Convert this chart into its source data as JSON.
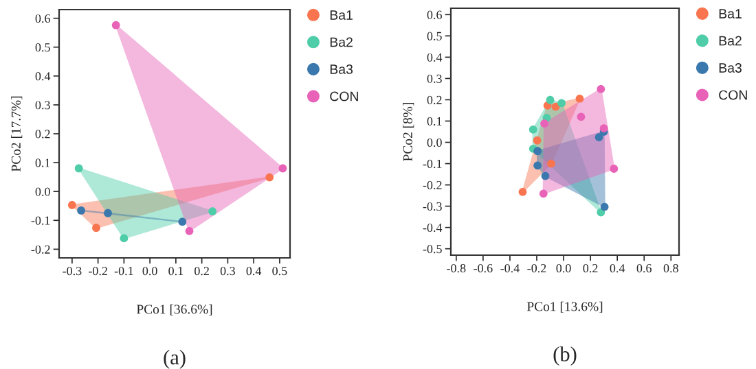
{
  "chart_data": [
    {
      "type": "scatter",
      "xlabel": "PCo1 [36.6%]",
      "ylabel": "PCo2 [17.7%]",
      "annotations": [
        "(a)"
      ],
      "xlim": [
        -0.35,
        0.54
      ],
      "ylim": [
        -0.23,
        0.63
      ],
      "xticks": [
        -0.3,
        -0.2,
        -0.1,
        {
          "value": 0,
          "label": "0.0"
        },
        0.1,
        0.2,
        0.3,
        0.4,
        0.5
      ],
      "yticks": [
        -0.2,
        -0.1,
        {
          "value": 0,
          "label": "0.0"
        },
        0.1,
        0.2,
        0.3,
        0.4,
        0.5,
        0.6
      ],
      "grid": false,
      "legend": "right",
      "marker": "circle",
      "series": [
        {
          "name": "Ba1",
          "color": "#f8754f",
          "x": [
            -0.3,
            -0.207,
            0.461
          ],
          "values": [
            -0.047,
            -0.126,
            0.049
          ]
        },
        {
          "name": "Ba2",
          "color": "#4ecda8",
          "x": [
            -0.274,
            -0.1,
            0.241
          ],
          "values": [
            0.08,
            -0.162,
            -0.069
          ]
        },
        {
          "name": "Ba3",
          "color": "#3a78ad",
          "x": [
            -0.265,
            -0.162,
            0.125
          ],
          "values": [
            -0.066,
            -0.075,
            -0.105
          ]
        },
        {
          "name": "CON",
          "color": "#e863b8",
          "x": [
            -0.131,
            0.512,
            0.152
          ],
          "values": [
            0.576,
            0.08,
            -0.137
          ]
        }
      ]
    },
    {
      "type": "scatter",
      "xlabel": "PCo1 [13.6%]",
      "ylabel": "PCo2 [8%]",
      "annotations": [
        "(b)"
      ],
      "xlim": [
        -0.84,
        0.86
      ],
      "ylim": [
        -0.53,
        0.63
      ],
      "xticks": [
        -0.8,
        -0.6,
        -0.4,
        -0.2,
        {
          "value": 0,
          "label": "0.0"
        },
        0.2,
        0.4,
        0.6,
        0.8
      ],
      "yticks": [
        -0.5,
        -0.4,
        -0.3,
        -0.2,
        -0.1,
        {
          "value": 0,
          "label": "0.0"
        },
        0.1,
        0.2,
        0.3,
        0.4,
        0.5,
        0.6
      ],
      "grid": false,
      "legend": "right",
      "marker": "circle",
      "series": [
        {
          "name": "Ba1",
          "color": "#f8754f",
          "x": [
            -0.305,
            -0.197,
            -0.12,
            -0.059,
            0.12,
            -0.093
          ],
          "values": [
            -0.233,
            0.009,
            0.173,
            0.167,
            0.205,
            -0.1
          ]
        },
        {
          "name": "Ba2",
          "color": "#4ecda8",
          "x": [
            -0.227,
            -0.227,
            -0.1,
            -0.015,
            -0.126,
            0.278
          ],
          "values": [
            0.06,
            -0.03,
            0.199,
            0.184,
            0.115,
            -0.329
          ]
        },
        {
          "name": "Ba3",
          "color": "#3a78ad",
          "x": [
            -0.194,
            -0.194,
            -0.136,
            0.264,
            0.305,
            0.3
          ],
          "values": [
            -0.041,
            -0.109,
            -0.158,
            0.024,
            -0.303,
            0.05
          ]
        },
        {
          "name": "CON",
          "color": "#e863b8",
          "x": [
            -0.143,
            0.13,
            0.278,
            0.3,
            0.375,
            -0.15
          ],
          "values": [
            0.088,
            0.12,
            0.25,
            0.066,
            -0.124,
            -0.241
          ]
        }
      ]
    }
  ]
}
